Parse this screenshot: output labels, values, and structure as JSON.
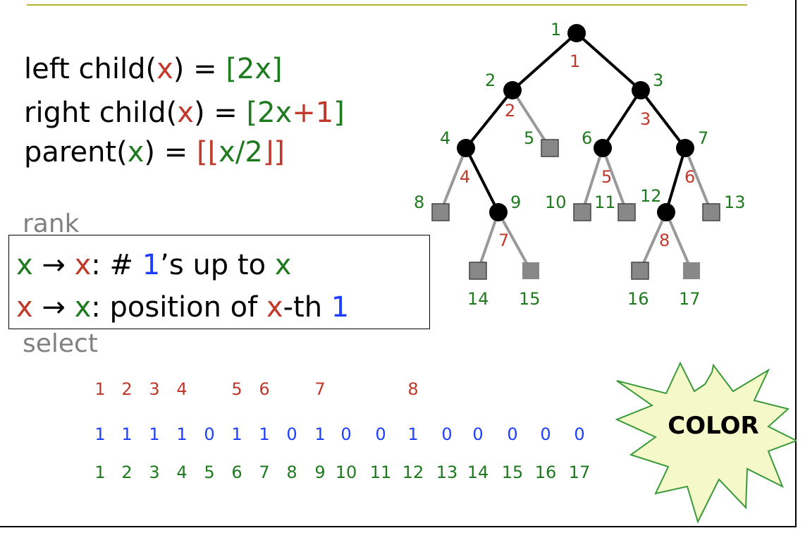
{
  "formulas": {
    "left_child": {
      "pre": "left child(",
      "x": "x",
      "mid": ") = ",
      "open": "[",
      "two_x": "2x",
      "close": "]"
    },
    "right_child": {
      "pre": "right child(",
      "x": "x",
      "mid": ") = ",
      "open": "[",
      "two_x": "2x",
      "plus1": "+1",
      "close": "]"
    },
    "parent": {
      "pre": "parent(",
      "x": "x",
      "mid": ") = ",
      "open": "[",
      "floor_open": "⌊",
      "x2": "x",
      "slash2": "/2",
      "floor_close": "⌋",
      "close": "]"
    }
  },
  "rank_label": "rank",
  "select_label": "select",
  "rank_box": {
    "line1": {
      "x_from": "x",
      "arrow": " → ",
      "x_to": "x",
      "text1": ": # ",
      "one": "1",
      "text2": "’s up to ",
      "x_end": "x"
    },
    "line2": {
      "x_from": "x",
      "arrow": " → ",
      "x_to": "x",
      "text1": ": position of ",
      "x_mid": "x",
      "text2": "-th ",
      "one": "1"
    }
  },
  "sequence": {
    "rank_row": [
      "1",
      "2",
      "3",
      "4",
      "5",
      "6",
      "7",
      "8"
    ],
    "bits": [
      "1",
      "1",
      "1",
      "1",
      "0",
      "1",
      "1",
      "0",
      "1",
      "0",
      "0",
      "1",
      "0",
      "0",
      "0",
      "0",
      "0"
    ],
    "positions": [
      "1",
      "2",
      "3",
      "4",
      "5",
      "6",
      "7",
      "8",
      "9",
      "10",
      "11",
      "12",
      "13",
      "14",
      "15",
      "16",
      "17"
    ]
  },
  "tree": {
    "nodes": [
      {
        "green": "1",
        "red": "1",
        "type": "internal"
      },
      {
        "green": "2",
        "red": "2",
        "type": "internal"
      },
      {
        "green": "3",
        "red": "3",
        "type": "internal"
      },
      {
        "green": "4",
        "red": "4",
        "type": "internal"
      },
      {
        "green": "5",
        "red": "",
        "type": "leaf"
      },
      {
        "green": "6",
        "red": "5",
        "type": "internal"
      },
      {
        "green": "7",
        "red": "6",
        "type": "internal"
      },
      {
        "green": "8",
        "red": "",
        "type": "leaf"
      },
      {
        "green": "9",
        "red": "7",
        "type": "internal"
      },
      {
        "green": "10",
        "red": "",
        "type": "leaf"
      },
      {
        "green": "11",
        "red": "",
        "type": "leaf"
      },
      {
        "green": "12",
        "red": "8",
        "type": "internal"
      },
      {
        "green": "13",
        "red": "",
        "type": "leaf"
      },
      {
        "green": "14",
        "red": "",
        "type": "leaf"
      },
      {
        "green": "15",
        "red": "",
        "type": "leaf"
      },
      {
        "green": "16",
        "red": "",
        "type": "leaf"
      },
      {
        "green": "17",
        "red": "",
        "type": "leaf"
      }
    ]
  },
  "starburst": {
    "label": "COLOR",
    "fill": "#f5f8c8",
    "stroke": "#3a9a3a"
  },
  "colors": {
    "red": "#c0392b",
    "green": "#1f7a1f",
    "blue": "#1f3fff",
    "gray": "#808080",
    "accent_line": "#b5b530"
  }
}
